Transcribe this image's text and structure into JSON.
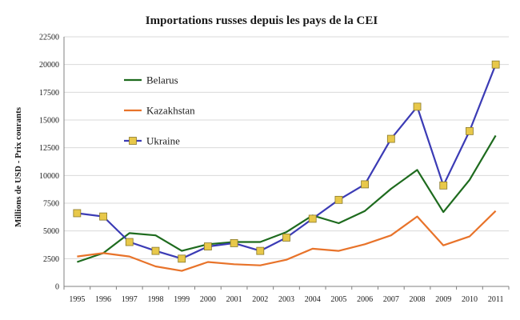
{
  "chart_data": {
    "type": "line",
    "title": "Importations russes depuis les pays de la CEI",
    "ylabel": "Millions de USD - Prix courants",
    "xlabel": "",
    "ylim": [
      0,
      22500
    ],
    "yticks": [
      "0",
      "2500",
      "5000",
      "7500",
      "10000",
      "12500",
      "15000",
      "17500",
      "20000",
      "22500"
    ],
    "categories": [
      "1995",
      "1996",
      "1997",
      "1998",
      "1999",
      "2000",
      "2001",
      "2002",
      "2003",
      "2004",
      "2005",
      "2006",
      "2007",
      "2008",
      "2009",
      "2010",
      "2011"
    ],
    "grid": "horizontal",
    "legend_position": "top-left inside plot",
    "series": [
      {
        "name": "Belarus",
        "color": "#1e6b1e",
        "marker": "none",
        "values": [
          2200,
          3000,
          4800,
          4600,
          3200,
          3800,
          4000,
          4000,
          4900,
          6400,
          5700,
          6800,
          8800,
          10500,
          6700,
          9600,
          13600
        ]
      },
      {
        "name": "Kazakhstan",
        "color": "#e8732a",
        "marker": "none",
        "values": [
          2700,
          3000,
          2700,
          1800,
          1400,
          2200,
          2000,
          1900,
          2400,
          3400,
          3200,
          3800,
          4600,
          6300,
          3700,
          4500,
          6800
        ]
      },
      {
        "name": "Ukraine",
        "color": "#3b3bb5",
        "marker": "square",
        "marker_color": "#e8c84a",
        "values": [
          6600,
          6300,
          4000,
          3200,
          2500,
          3600,
          3900,
          3200,
          4400,
          6100,
          7800,
          9200,
          13300,
          16200,
          9100,
          14000,
          20000
        ]
      }
    ]
  }
}
